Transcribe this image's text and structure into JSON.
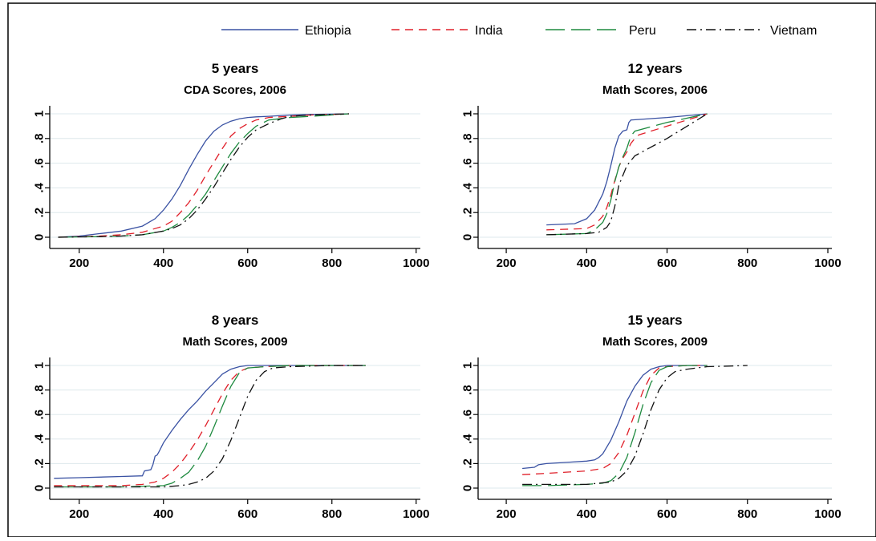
{
  "legend": {
    "placement": "top-right",
    "items": [
      {
        "name": "Ethiopia",
        "color": "#3a52a3",
        "dash": "solid"
      },
      {
        "name": "India",
        "color": "#e0202a",
        "dash": "dash"
      },
      {
        "name": "Peru",
        "color": "#1e8a3f",
        "dash": "longdash"
      },
      {
        "name": "Vietnam",
        "color": "#111111",
        "dash": "dashdot"
      }
    ]
  },
  "colors": {
    "grid": "#dde8ec",
    "axis": "#000000",
    "frame": "#000000"
  },
  "chart_data": [
    {
      "type": "line",
      "title": "5 years",
      "subtitle": "CDA Scores, 2006",
      "xlim": [
        130,
        1010
      ],
      "ylim": [
        0,
        1
      ],
      "xticks": [
        "200",
        "400",
        "600",
        "800",
        "1000"
      ],
      "yticks": [
        "0",
        ".2",
        ".4",
        ".6",
        ".8",
        "1"
      ],
      "grid": true,
      "series": [
        {
          "name": "Ethiopia",
          "x": [
            150,
            200,
            250,
            300,
            350,
            380,
            400,
            420,
            440,
            460,
            480,
            500,
            520,
            540,
            560,
            580,
            600,
            620,
            650,
            700,
            750,
            840
          ],
          "y": [
            0.0,
            0.01,
            0.03,
            0.05,
            0.09,
            0.15,
            0.22,
            0.31,
            0.42,
            0.55,
            0.67,
            0.78,
            0.86,
            0.91,
            0.94,
            0.96,
            0.97,
            0.975,
            0.98,
            0.99,
            0.995,
            1.0
          ]
        },
        {
          "name": "India",
          "x": [
            150,
            250,
            300,
            350,
            400,
            420,
            440,
            460,
            480,
            500,
            520,
            540,
            560,
            580,
            600,
            620,
            650,
            700,
            750,
            800,
            840
          ],
          "y": [
            0.0,
            0.01,
            0.02,
            0.04,
            0.09,
            0.13,
            0.2,
            0.28,
            0.38,
            0.5,
            0.61,
            0.72,
            0.82,
            0.88,
            0.92,
            0.95,
            0.97,
            0.98,
            0.99,
            0.995,
            1.0
          ]
        },
        {
          "name": "Peru",
          "x": [
            150,
            250,
            300,
            350,
            400,
            420,
            440,
            460,
            480,
            500,
            520,
            540,
            560,
            580,
            600,
            620,
            650,
            700,
            750,
            840
          ],
          "y": [
            0.0,
            0.005,
            0.01,
            0.02,
            0.05,
            0.08,
            0.12,
            0.18,
            0.26,
            0.35,
            0.46,
            0.57,
            0.68,
            0.77,
            0.84,
            0.9,
            0.95,
            0.97,
            0.98,
            1.0
          ]
        },
        {
          "name": "Vietnam",
          "x": [
            150,
            250,
            300,
            350,
            400,
            420,
            440,
            460,
            480,
            500,
            520,
            540,
            560,
            580,
            600,
            620,
            650,
            680,
            700,
            750,
            840
          ],
          "y": [
            0.0,
            0.005,
            0.01,
            0.02,
            0.05,
            0.07,
            0.1,
            0.15,
            0.22,
            0.31,
            0.41,
            0.52,
            0.63,
            0.73,
            0.81,
            0.87,
            0.92,
            0.96,
            0.98,
            0.99,
            1.0
          ]
        }
      ]
    },
    {
      "type": "line",
      "title": "12 years",
      "subtitle": "Math Scores, 2006",
      "xlim": [
        130,
        1010
      ],
      "ylim": [
        0,
        1
      ],
      "xticks": [
        "200",
        "400",
        "600",
        "800",
        "1000"
      ],
      "yticks": [
        "0",
        ".2",
        ".4",
        ".6",
        ".8",
        "1"
      ],
      "grid": true,
      "series": [
        {
          "name": "Ethiopia",
          "x": [
            300,
            370,
            400,
            420,
            440,
            450,
            460,
            470,
            480,
            490,
            500,
            505,
            510,
            600,
            700
          ],
          "y": [
            0.1,
            0.11,
            0.15,
            0.22,
            0.35,
            0.45,
            0.58,
            0.72,
            0.82,
            0.86,
            0.87,
            0.93,
            0.95,
            0.97,
            1.0
          ]
        },
        {
          "name": "India",
          "x": [
            300,
            400,
            420,
            440,
            450,
            460,
            470,
            480,
            490,
            500,
            510,
            520,
            530,
            600,
            700
          ],
          "y": [
            0.06,
            0.07,
            0.1,
            0.17,
            0.24,
            0.34,
            0.46,
            0.57,
            0.64,
            0.69,
            0.76,
            0.8,
            0.83,
            0.9,
            1.0
          ]
        },
        {
          "name": "Peru",
          "x": [
            300,
            400,
            420,
            440,
            450,
            460,
            470,
            480,
            490,
            500,
            510,
            520,
            600,
            700
          ],
          "y": [
            0.02,
            0.03,
            0.06,
            0.12,
            0.19,
            0.3,
            0.45,
            0.57,
            0.65,
            0.72,
            0.82,
            0.86,
            0.93,
            1.0
          ]
        },
        {
          "name": "Vietnam",
          "x": [
            300,
            400,
            430,
            450,
            460,
            470,
            480,
            490,
            500,
            510,
            520,
            600,
            700
          ],
          "y": [
            0.02,
            0.03,
            0.04,
            0.08,
            0.13,
            0.25,
            0.42,
            0.5,
            0.58,
            0.62,
            0.66,
            0.8,
            1.0
          ]
        }
      ]
    },
    {
      "type": "line",
      "title": "8 years",
      "subtitle": "Math Scores, 2009",
      "xlim": [
        130,
        1010
      ],
      "ylim": [
        0,
        1
      ],
      "xticks": [
        "200",
        "400",
        "600",
        "800",
        "1000"
      ],
      "yticks": [
        "0",
        ".2",
        ".4",
        ".6",
        ".8",
        "1"
      ],
      "grid": true,
      "series": [
        {
          "name": "Ethiopia",
          "x": [
            140,
            200,
            300,
            350,
            355,
            370,
            375,
            380,
            385,
            390,
            400,
            420,
            440,
            460,
            480,
            500,
            520,
            540,
            560,
            580,
            600,
            640,
            700,
            800,
            880
          ],
          "y": [
            0.08,
            0.085,
            0.095,
            0.1,
            0.14,
            0.15,
            0.19,
            0.26,
            0.27,
            0.3,
            0.37,
            0.47,
            0.56,
            0.64,
            0.71,
            0.79,
            0.86,
            0.93,
            0.97,
            0.99,
            1.0,
            1.0,
            1.0,
            1.0,
            1.0
          ]
        },
        {
          "name": "India",
          "x": [
            140,
            300,
            350,
            380,
            400,
            420,
            440,
            460,
            480,
            500,
            520,
            540,
            560,
            580,
            600,
            640,
            700,
            880
          ],
          "y": [
            0.02,
            0.02,
            0.03,
            0.05,
            0.08,
            0.13,
            0.2,
            0.29,
            0.39,
            0.51,
            0.64,
            0.77,
            0.88,
            0.95,
            0.98,
            0.99,
            1.0,
            1.0
          ]
        },
        {
          "name": "Peru",
          "x": [
            140,
            300,
            400,
            420,
            440,
            460,
            480,
            500,
            520,
            540,
            560,
            580,
            600,
            640,
            700,
            880
          ],
          "y": [
            0.01,
            0.01,
            0.02,
            0.04,
            0.08,
            0.13,
            0.22,
            0.34,
            0.5,
            0.67,
            0.83,
            0.94,
            0.98,
            0.99,
            1.0,
            1.0
          ]
        },
        {
          "name": "Vietnam",
          "x": [
            140,
            300,
            400,
            440,
            460,
            480,
            500,
            520,
            540,
            560,
            580,
            600,
            620,
            640,
            660,
            700,
            800,
            880
          ],
          "y": [
            0.01,
            0.01,
            0.01,
            0.02,
            0.03,
            0.05,
            0.08,
            0.14,
            0.24,
            0.39,
            0.57,
            0.75,
            0.88,
            0.95,
            0.98,
            0.99,
            1.0,
            1.0
          ]
        }
      ]
    },
    {
      "type": "line",
      "title": "15 years",
      "subtitle": "Math Scores, 2009",
      "xlim": [
        130,
        1010
      ],
      "ylim": [
        0,
        1
      ],
      "xticks": [
        "200",
        "400",
        "600",
        "800",
        "1000"
      ],
      "yticks": [
        "0",
        ".2",
        ".4",
        ".6",
        ".8",
        "1"
      ],
      "grid": true,
      "series": [
        {
          "name": "Ethiopia",
          "x": [
            240,
            270,
            280,
            300,
            350,
            400,
            420,
            430,
            440,
            460,
            480,
            500,
            520,
            540,
            560,
            580,
            600,
            650,
            700
          ],
          "y": [
            0.16,
            0.17,
            0.19,
            0.2,
            0.21,
            0.22,
            0.23,
            0.25,
            0.28,
            0.39,
            0.54,
            0.71,
            0.83,
            0.92,
            0.97,
            0.99,
            1.0,
            1.0,
            1.0
          ]
        },
        {
          "name": "India",
          "x": [
            240,
            300,
            400,
            440,
            460,
            480,
            500,
            520,
            540,
            560,
            580,
            600,
            650,
            700
          ],
          "y": [
            0.11,
            0.12,
            0.14,
            0.16,
            0.2,
            0.29,
            0.43,
            0.61,
            0.79,
            0.92,
            0.98,
            0.99,
            1.0,
            1.0
          ]
        },
        {
          "name": "Peru",
          "x": [
            240,
            300,
            400,
            440,
            460,
            480,
            500,
            520,
            540,
            560,
            580,
            600,
            650,
            700
          ],
          "y": [
            0.02,
            0.02,
            0.03,
            0.04,
            0.06,
            0.12,
            0.25,
            0.45,
            0.68,
            0.86,
            0.96,
            0.99,
            1.0,
            1.0
          ]
        },
        {
          "name": "Vietnam",
          "x": [
            240,
            300,
            400,
            460,
            480,
            500,
            520,
            540,
            560,
            580,
            600,
            620,
            650,
            700,
            750,
            800
          ],
          "y": [
            0.03,
            0.03,
            0.03,
            0.05,
            0.08,
            0.14,
            0.26,
            0.44,
            0.64,
            0.8,
            0.9,
            0.95,
            0.97,
            0.99,
            0.995,
            1.0
          ]
        }
      ]
    }
  ]
}
